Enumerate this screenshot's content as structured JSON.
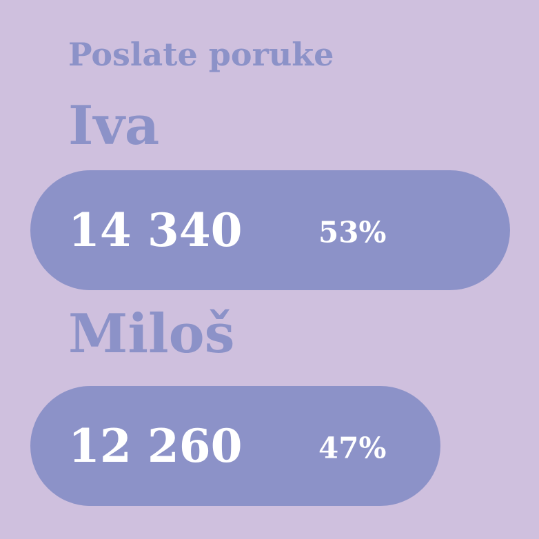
{
  "chart_data": {
    "type": "bar",
    "orientation": "horizontal",
    "title": "Poslate poruke",
    "categories": [
      "Iva",
      "Miloš"
    ],
    "values": [
      14340,
      12260
    ],
    "value_labels": [
      "14 340",
      "12 260"
    ],
    "percent_labels": [
      "53%",
      "47%"
    ],
    "percents": [
      53,
      47
    ],
    "bar_color": "#8c92c8",
    "background_color": "#cfc0de",
    "text_color": "#ffffff",
    "grid": false
  }
}
